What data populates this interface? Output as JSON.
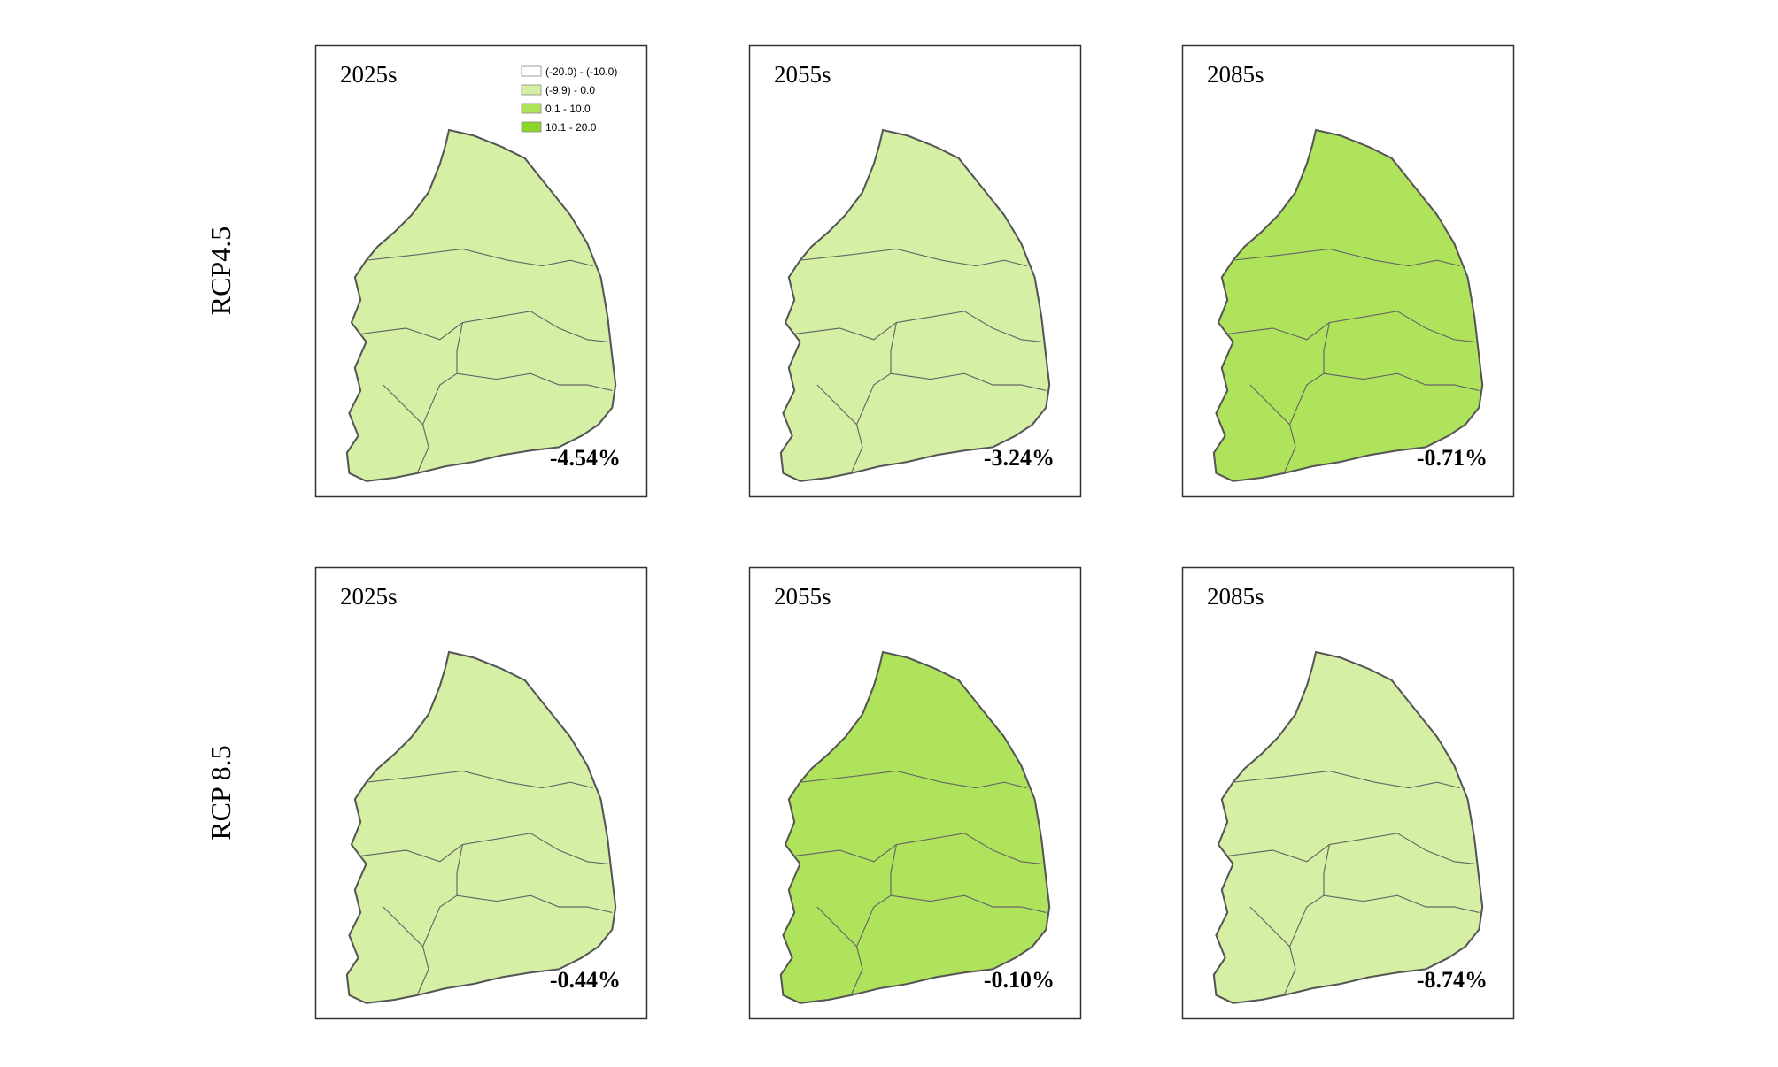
{
  "rows": [
    {
      "label": "RCP4.5",
      "panels": [
        {
          "period": "2025s",
          "change": "-4.54%"
        },
        {
          "period": "2055s",
          "change": "-3.24%"
        },
        {
          "period": "2085s",
          "change": "-0.71%"
        }
      ]
    },
    {
      "label": "RCP 8.5",
      "panels": [
        {
          "period": "2025s",
          "change": "-0.44%"
        },
        {
          "period": "2055s",
          "change": "-0.10%"
        },
        {
          "period": "2085s",
          "change": "-8.74%"
        }
      ]
    }
  ],
  "legend": [
    {
      "label": "(-20.0) - (-10.0)",
      "color": "#ffffff"
    },
    {
      "label": "(-9.9) - 0.0",
      "color": "#d5efa5"
    },
    {
      "label": "0.1 - 10.0",
      "color": "#b0e35c"
    },
    {
      "label": "10.1 - 20.0",
      "color": "#8cd629"
    }
  ]
}
